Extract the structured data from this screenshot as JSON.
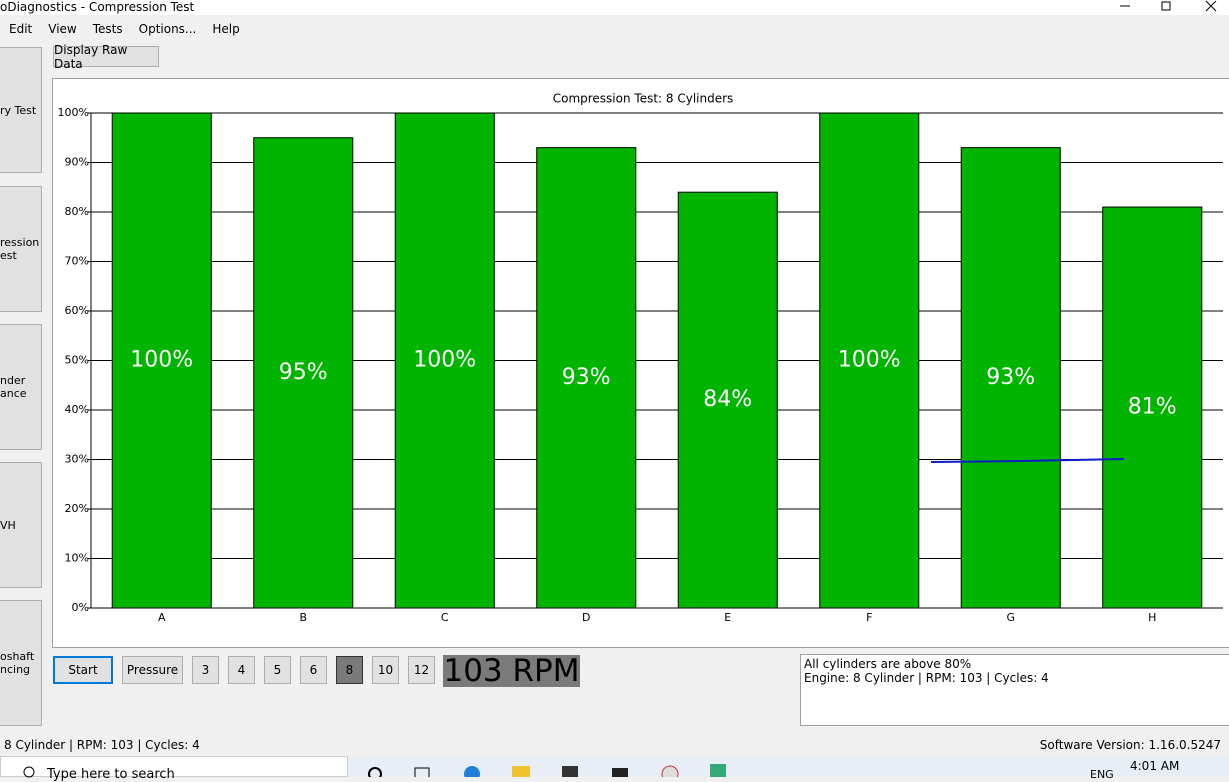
{
  "window": {
    "title": "oDiagnostics - Compression Test"
  },
  "menu": [
    "Edit",
    "View",
    "Tests",
    "Options...",
    "Help"
  ],
  "sidebar": [
    [
      "ry Test"
    ],
    [
      "ression",
      "est"
    ],
    [
      "nder",
      "ance"
    ],
    [
      "VH"
    ],
    [
      "oshaft",
      "ncing"
    ]
  ],
  "toolbar": {
    "raw_button": "Display Raw Data"
  },
  "chart_data": {
    "type": "bar",
    "title": "Compression Test: 8 Cylinders",
    "categories": [
      "A",
      "B",
      "C",
      "D",
      "E",
      "F",
      "G",
      "H"
    ],
    "values": [
      100,
      95,
      100,
      93,
      84,
      100,
      93,
      81
    ],
    "value_labels": [
      "100%",
      "95%",
      "100%",
      "93%",
      "84%",
      "100%",
      "93%",
      "81%"
    ],
    "color": "#00b400",
    "ylim": [
      0,
      100
    ],
    "yticks": [
      {
        "value": 0,
        "label": "0%"
      },
      {
        "value": 10,
        "label": "10%"
      },
      {
        "value": 20,
        "label": "20%"
      },
      {
        "value": 30,
        "label": "30%"
      },
      {
        "value": 40,
        "label": "40%"
      },
      {
        "value": 50,
        "label": "50%"
      },
      {
        "value": 60,
        "label": "60%"
      },
      {
        "value": 70,
        "label": "70%"
      },
      {
        "value": 80,
        "label": "80%"
      },
      {
        "value": 90,
        "label": "90%"
      },
      {
        "value": 100,
        "label": "100%"
      }
    ],
    "grid": true
  },
  "controls": {
    "start": "Start",
    "pressure": "Pressure",
    "cylinders": [
      "3",
      "4",
      "5",
      "6",
      "8",
      "10",
      "12"
    ],
    "selected_index": 4
  },
  "rpm": "103 RPM",
  "messages": [
    "All cylinders are above 80%",
    "Engine: 8 Cylinder | RPM: 103 | Cycles: 4"
  ],
  "status": {
    "left": "8 Cylinder | RPM: 103 | Cycles: 4",
    "right": "Software Version: 1.16.0.5247"
  },
  "taskbar": {
    "search": "Type here to search",
    "language": "ENG",
    "time": "4:01 AM"
  }
}
